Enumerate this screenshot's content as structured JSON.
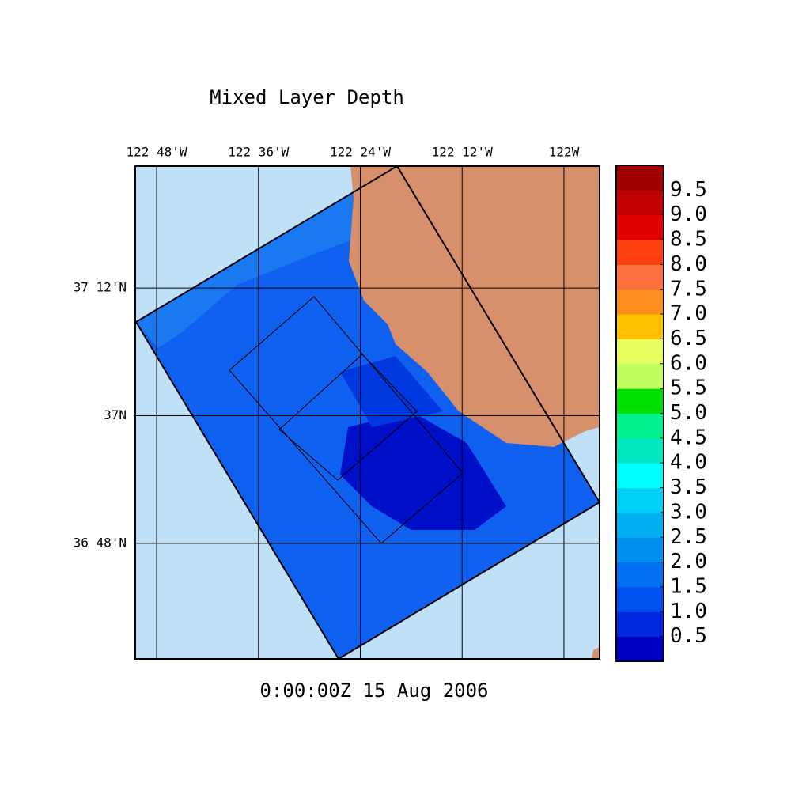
{
  "title": "Mixed Layer Depth",
  "time_label": "0:00:00Z  15 Aug 2006",
  "map": {
    "xlim": [
      -122.842,
      -121.93
    ],
    "ylim": [
      36.619,
      37.391
    ],
    "xticks": [
      {
        "value": -122.8,
        "label": "122 48'W"
      },
      {
        "value": -122.6,
        "label": "122 36'W"
      },
      {
        "value": -122.4,
        "label": "122 24'W"
      },
      {
        "value": -122.2,
        "label": "122 12'W"
      },
      {
        "value": -122.0,
        "label": "122W"
      }
    ],
    "yticks": [
      {
        "value": 37.2,
        "label": "37 12'N"
      },
      {
        "value": 37.0,
        "label": "37N"
      },
      {
        "value": 36.8,
        "label": "36 48'N"
      }
    ]
  },
  "colorbar": {
    "clim": [
      0,
      10
    ],
    "colors": [
      "#0000c0",
      "#0028e0",
      "#0050f0",
      "#0070f0",
      "#0090f0",
      "#00b0f0",
      "#00d0f8",
      "#00ffff",
      "#00e8c0",
      "#00f090",
      "#00e000",
      "#c0ff60",
      "#e8ff60",
      "#ffc000",
      "#ff9020",
      "#ff7040",
      "#ff4010",
      "#e00000",
      "#c00000",
      "#a00000"
    ],
    "ticks": [
      0.5,
      {
        "value": 1,
        "label": "1.0"
      },
      1.5,
      {
        "value": 2,
        "label": "2.0"
      },
      2.5,
      {
        "value": 3,
        "label": "3.0"
      },
      3.5,
      {
        "value": 4,
        "label": "4.0"
      },
      4.5,
      {
        "value": 5,
        "label": "5.0"
      },
      5.5,
      {
        "value": 6,
        "label": "6.0"
      },
      6.5,
      {
        "value": 7,
        "label": "7.0"
      },
      7.5,
      {
        "value": 8,
        "label": "8.0"
      },
      8.5,
      {
        "value": 9,
        "label": "9.0"
      },
      9.5
    ]
  }
}
